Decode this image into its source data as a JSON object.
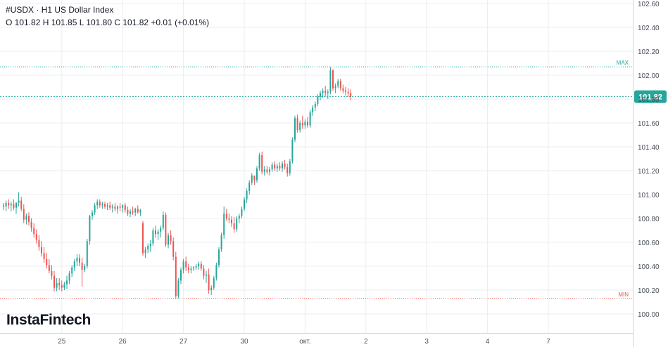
{
  "header": {
    "symbol": "#USDX",
    "sep": "·",
    "title": "H1 US Dollar Index",
    "ohlc": "O 101.82 H 101.85 L 101.80 C 101.82  +0.01 (+0.01%)"
  },
  "logo": "InstaFintech",
  "colors": {
    "up": "#26a69a",
    "down": "#ef5350",
    "maxmin": "#26a69a",
    "min": "#ef5350",
    "last": "#26a69a",
    "grid": "#e9ecf1",
    "axis_text": "#4a4f5a"
  },
  "chart_data": {
    "type": "candlestick",
    "title": "H1 US Dollar Index",
    "timeframe": "H1",
    "y_axis": {
      "min": 99.94,
      "max": 102.64,
      "ticks": [
        "100.00",
        "100.20",
        "100.40",
        "100.60",
        "100.80",
        "101.00",
        "101.20",
        "101.40",
        "101.60",
        "101.80",
        "102.00",
        "102.20",
        "102.40",
        "102.60"
      ]
    },
    "x_ticks": [
      {
        "label": "25",
        "index": 23
      },
      {
        "label": "26",
        "index": 47
      },
      {
        "label": "27",
        "index": 71
      },
      {
        "label": "30",
        "index": 95
      },
      {
        "label": "окт.",
        "index": 119
      },
      {
        "label": "2",
        "index": 143
      },
      {
        "label": "3",
        "index": 167
      },
      {
        "label": "4",
        "index": 191
      },
      {
        "label": "7",
        "index": 215
      }
    ],
    "max_line": {
      "label": "MAX",
      "value": 102.07
    },
    "min_line": {
      "label": "MIN",
      "value": 100.13
    },
    "last_price": {
      "label": "101.82",
      "value": 101.82
    },
    "candles": [
      [
        100.91,
        100.93,
        100.87,
        100.9
      ],
      [
        100.9,
        100.95,
        100.86,
        100.93
      ],
      [
        100.93,
        100.96,
        100.88,
        100.91
      ],
      [
        100.91,
        100.94,
        100.86,
        100.92
      ],
      [
        100.92,
        100.96,
        100.87,
        100.89
      ],
      [
        100.89,
        100.94,
        100.84,
        100.93
      ],
      [
        100.93,
        101.02,
        100.9,
        100.95
      ],
      [
        100.95,
        100.98,
        100.86,
        100.88
      ],
      [
        100.88,
        100.92,
        100.76,
        100.79
      ],
      [
        100.79,
        100.84,
        100.75,
        100.82
      ],
      [
        100.82,
        100.85,
        100.74,
        100.77
      ],
      [
        100.77,
        100.8,
        100.69,
        100.72
      ],
      [
        100.72,
        100.76,
        100.64,
        100.67
      ],
      [
        100.67,
        100.71,
        100.59,
        100.62
      ],
      [
        100.62,
        100.66,
        100.53,
        100.56
      ],
      [
        100.56,
        100.61,
        100.48,
        100.51
      ],
      [
        100.51,
        100.56,
        100.43,
        100.46
      ],
      [
        100.46,
        100.51,
        100.38,
        100.41
      ],
      [
        100.41,
        100.46,
        100.34,
        100.36
      ],
      [
        100.36,
        100.41,
        100.29,
        100.32
      ],
      [
        100.32,
        100.36,
        100.19,
        100.22
      ],
      [
        100.22,
        100.3,
        100.19,
        100.26
      ],
      [
        100.26,
        100.3,
        100.2,
        100.24
      ],
      [
        100.24,
        100.28,
        100.19,
        100.22
      ],
      [
        100.22,
        100.27,
        100.2,
        100.25
      ],
      [
        100.25,
        100.32,
        100.21,
        100.28
      ],
      [
        100.28,
        100.36,
        100.25,
        100.34
      ],
      [
        100.34,
        100.41,
        100.31,
        100.39
      ],
      [
        100.39,
        100.46,
        100.36,
        100.44
      ],
      [
        100.44,
        100.5,
        100.4,
        100.47
      ],
      [
        100.47,
        100.5,
        100.4,
        100.43
      ],
      [
        100.43,
        100.47,
        100.23,
        100.37
      ],
      [
        100.37,
        100.42,
        100.35,
        100.4
      ],
      [
        100.4,
        100.63,
        100.38,
        100.61
      ],
      [
        100.61,
        100.83,
        100.58,
        100.82
      ],
      [
        100.82,
        100.87,
        100.79,
        100.85
      ],
      [
        100.85,
        100.93,
        100.83,
        100.91
      ],
      [
        100.91,
        100.96,
        100.88,
        100.94
      ],
      [
        100.94,
        100.96,
        100.89,
        100.91
      ],
      [
        100.91,
        100.94,
        100.88,
        100.92
      ],
      [
        100.92,
        100.94,
        100.88,
        100.9
      ],
      [
        100.9,
        100.93,
        100.87,
        100.91
      ],
      [
        100.91,
        100.94,
        100.87,
        100.89
      ],
      [
        100.89,
        100.92,
        100.85,
        100.9
      ],
      [
        100.9,
        100.93,
        100.86,
        100.88
      ],
      [
        100.88,
        100.91,
        100.84,
        100.9
      ],
      [
        100.9,
        100.93,
        100.86,
        100.89
      ],
      [
        100.89,
        100.92,
        100.85,
        100.91
      ],
      [
        100.91,
        100.93,
        100.85,
        100.87
      ],
      [
        100.87,
        100.9,
        100.82,
        100.84
      ],
      [
        100.84,
        100.88,
        100.81,
        100.86
      ],
      [
        100.86,
        100.9,
        100.83,
        100.85
      ],
      [
        100.85,
        100.89,
        100.82,
        100.88
      ],
      [
        100.88,
        100.91,
        100.84,
        100.85
      ],
      [
        100.85,
        100.88,
        100.82,
        100.87
      ],
      [
        100.76,
        100.78,
        100.49,
        100.51
      ],
      [
        100.51,
        100.56,
        100.47,
        100.54
      ],
      [
        100.54,
        100.59,
        100.51,
        100.57
      ],
      [
        100.57,
        100.62,
        100.52,
        100.59
      ],
      [
        100.59,
        100.72,
        100.57,
        100.7
      ],
      [
        100.7,
        100.74,
        100.64,
        100.67
      ],
      [
        100.67,
        100.71,
        100.62,
        100.69
      ],
      [
        100.69,
        100.74,
        100.64,
        100.72
      ],
      [
        100.72,
        100.86,
        100.7,
        100.83
      ],
      [
        100.83,
        100.85,
        100.56,
        100.58
      ],
      [
        100.58,
        100.68,
        100.55,
        100.66
      ],
      [
        100.66,
        100.7,
        100.58,
        100.61
      ],
      [
        100.61,
        100.64,
        100.45,
        100.48
      ],
      [
        100.48,
        100.52,
        100.13,
        100.15
      ],
      [
        100.15,
        100.3,
        100.13,
        100.28
      ],
      [
        100.28,
        100.39,
        100.25,
        100.37
      ],
      [
        100.37,
        100.46,
        100.34,
        100.44
      ],
      [
        100.44,
        100.48,
        100.36,
        100.39
      ],
      [
        100.39,
        100.42,
        100.34,
        100.37
      ],
      [
        100.37,
        100.4,
        100.34,
        100.38
      ],
      [
        100.38,
        100.4,
        100.36,
        100.39
      ],
      [
        100.39,
        100.42,
        100.37,
        100.4
      ],
      [
        100.4,
        100.44,
        100.37,
        100.42
      ],
      [
        100.42,
        100.44,
        100.36,
        100.38
      ],
      [
        100.38,
        100.41,
        100.29,
        100.32
      ],
      [
        100.32,
        100.36,
        100.26,
        100.33
      ],
      [
        100.33,
        100.38,
        100.17,
        100.2
      ],
      [
        100.2,
        100.24,
        100.16,
        100.22
      ],
      [
        100.22,
        100.32,
        100.2,
        100.3
      ],
      [
        100.3,
        100.43,
        100.28,
        100.41
      ],
      [
        100.41,
        100.56,
        100.39,
        100.54
      ],
      [
        100.54,
        100.68,
        100.52,
        100.66
      ],
      [
        100.66,
        100.9,
        100.63,
        100.84
      ],
      [
        100.84,
        100.88,
        100.78,
        100.8
      ],
      [
        100.8,
        100.84,
        100.76,
        100.79
      ],
      [
        100.79,
        100.82,
        100.73,
        100.76
      ],
      [
        100.76,
        100.81,
        100.68,
        100.71
      ],
      [
        100.71,
        100.82,
        100.69,
        100.8
      ],
      [
        100.8,
        100.84,
        100.76,
        100.82
      ],
      [
        100.82,
        100.9,
        100.8,
        100.88
      ],
      [
        100.88,
        100.98,
        100.86,
        100.96
      ],
      [
        100.96,
        101.05,
        100.93,
        101.03
      ],
      [
        101.03,
        101.12,
        101.0,
        101.1
      ],
      [
        101.1,
        101.18,
        101.08,
        101.16
      ],
      [
        101.16,
        101.14,
        101.08,
        101.12
      ],
      [
        101.12,
        101.24,
        101.1,
        101.22
      ],
      [
        101.22,
        101.35,
        101.2,
        101.33
      ],
      [
        101.33,
        101.36,
        101.17,
        101.19
      ],
      [
        101.19,
        101.24,
        101.16,
        101.21
      ],
      [
        101.21,
        101.24,
        101.17,
        101.19
      ],
      [
        101.19,
        101.23,
        101.16,
        101.21
      ],
      [
        101.21,
        101.27,
        101.19,
        101.25
      ],
      [
        101.25,
        101.28,
        101.2,
        101.22
      ],
      [
        101.22,
        101.26,
        101.19,
        101.24
      ],
      [
        101.24,
        101.27,
        101.2,
        101.22
      ],
      [
        101.22,
        101.28,
        101.19,
        101.26
      ],
      [
        101.26,
        101.29,
        101.21,
        101.23
      ],
      [
        101.23,
        101.26,
        101.15,
        101.18
      ],
      [
        101.18,
        101.3,
        101.16,
        101.28
      ],
      [
        101.28,
        101.48,
        101.26,
        101.46
      ],
      [
        101.46,
        101.66,
        101.44,
        101.64
      ],
      [
        101.64,
        101.67,
        101.52,
        101.54
      ],
      [
        101.54,
        101.62,
        101.52,
        101.6
      ],
      [
        101.6,
        101.66,
        101.55,
        101.58
      ],
      [
        101.58,
        101.63,
        101.55,
        101.61
      ],
      [
        101.61,
        101.65,
        101.56,
        101.58
      ],
      [
        101.58,
        101.71,
        101.56,
        101.69
      ],
      [
        101.69,
        101.75,
        101.66,
        101.73
      ],
      [
        101.73,
        101.78,
        101.7,
        101.76
      ],
      [
        101.76,
        101.84,
        101.74,
        101.82
      ],
      [
        101.82,
        101.87,
        101.79,
        101.85
      ],
      [
        101.85,
        101.89,
        101.81,
        101.87
      ],
      [
        101.87,
        101.91,
        101.82,
        101.85
      ],
      [
        101.85,
        101.88,
        101.8,
        101.86
      ],
      [
        101.86,
        102.07,
        101.84,
        102.04
      ],
      [
        102.04,
        102.05,
        101.87,
        101.89
      ],
      [
        101.89,
        101.93,
        101.85,
        101.91
      ],
      [
        101.91,
        101.97,
        101.89,
        101.95
      ],
      [
        101.95,
        101.97,
        101.87,
        101.89
      ],
      [
        101.89,
        101.92,
        101.85,
        101.87
      ],
      [
        101.87,
        101.9,
        101.83,
        101.86
      ],
      [
        101.86,
        101.89,
        101.82,
        101.85
      ],
      [
        101.85,
        101.88,
        101.79,
        101.82
      ]
    ]
  }
}
